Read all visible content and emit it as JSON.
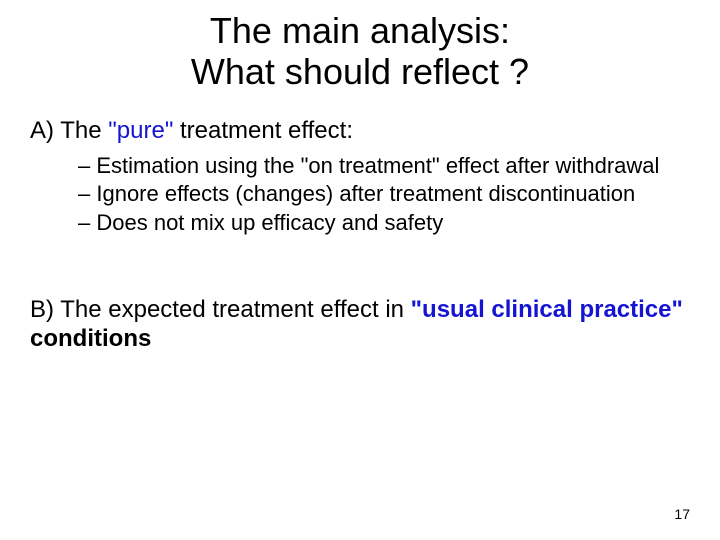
{
  "colors": {
    "text": "#000000",
    "highlight": "#1414d2",
    "background": "#ffffff"
  },
  "typography": {
    "title_fontsize": 36,
    "section_fontsize": 24,
    "bullet_fontsize": 22,
    "pagenum_fontsize": 14,
    "font_family": "Comic Sans MS"
  },
  "title": {
    "line1": "The main analysis:",
    "line2": "What should reflect ?"
  },
  "sectionA": {
    "prefix": "A) The ",
    "highlight": "\"pure\"",
    "suffix": " treatment effect:",
    "bullets": [
      "Estimation using the \"on treatment\" effect after withdrawal",
      "Ignore effects (changes) after treatment discontinuation",
      "Does not mix up efficacy and safety"
    ]
  },
  "sectionB": {
    "part1": "B) The expected treatment effect in ",
    "highlight": "\"usual clinical practice\"",
    "part2": " conditions"
  },
  "pageNumber": "17"
}
